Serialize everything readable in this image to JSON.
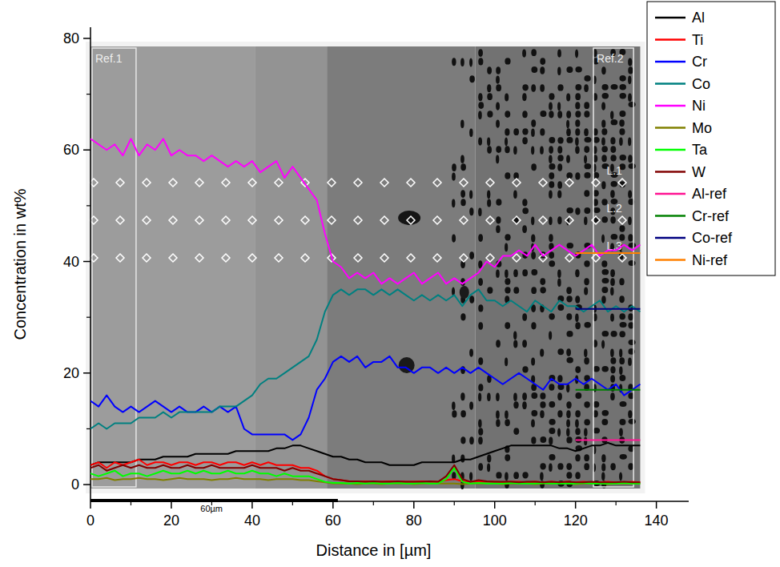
{
  "chart_data": {
    "type": "line",
    "x_label": "Distance in [µm]",
    "y_label": "Concentration in wt%",
    "xlim": [
      0,
      148
    ],
    "ylim": [
      -3,
      82
    ],
    "xticks": [
      0,
      20,
      40,
      60,
      80,
      100,
      120,
      140
    ],
    "yticks": [
      0,
      20,
      40,
      60,
      80
    ],
    "grid": false,
    "legend": "right",
    "annotations": [
      "Ref.1",
      "Ref.2",
      "L.1",
      "L.2",
      "L.3",
      "60µm"
    ],
    "x": [
      0,
      2,
      4,
      6,
      8,
      10,
      12,
      14,
      16,
      18,
      20,
      22,
      24,
      26,
      28,
      30,
      32,
      34,
      36,
      38,
      40,
      42,
      44,
      46,
      48,
      50,
      52,
      54,
      56,
      58,
      60,
      62,
      64,
      66,
      68,
      70,
      72,
      74,
      76,
      78,
      80,
      82,
      84,
      86,
      88,
      90,
      92,
      94,
      96,
      98,
      100,
      102,
      104,
      106,
      108,
      110,
      112,
      114,
      116,
      118,
      120,
      122,
      124,
      126,
      128,
      130,
      132,
      134,
      136
    ],
    "series": [
      {
        "name": "Al",
        "color": "#000000",
        "values": [
          3.5,
          4,
          4,
          4,
          4,
          4,
          4.5,
          4.5,
          4.5,
          5,
          5,
          5,
          5,
          5.5,
          5.5,
          5.5,
          5.5,
          5.5,
          6,
          6,
          6,
          6,
          6,
          6.5,
          6.5,
          7,
          7,
          6.5,
          6,
          5.5,
          5,
          5,
          4.5,
          4.5,
          4,
          4,
          4,
          3.5,
          3.5,
          3.5,
          3.5,
          4,
          4,
          4,
          4,
          4,
          4.5,
          4.5,
          5,
          5.5,
          6,
          6.5,
          7,
          7,
          7,
          7,
          7,
          7,
          6.5,
          6.5,
          6,
          6.5,
          7,
          7,
          7.5,
          7,
          7,
          7,
          7
        ]
      },
      {
        "name": "Ti",
        "color": "#ff0000",
        "values": [
          3.5,
          4,
          3,
          4,
          3.5,
          4,
          4.5,
          3.5,
          4,
          4,
          3.5,
          4,
          4,
          3.5,
          4,
          4,
          3.5,
          4,
          4,
          3.5,
          4,
          3.5,
          4,
          3.5,
          3.5,
          3.5,
          3,
          3,
          2.5,
          1.5,
          1,
          0.8,
          0.6,
          0.5,
          0.6,
          0.5,
          0.5,
          0.6,
          0.5,
          0.5,
          0.5,
          0.6,
          0.5,
          0.5,
          0.8,
          1,
          0.6,
          0.5,
          0.5,
          0.5,
          0.5,
          0.4,
          0.5,
          0.5,
          0.4,
          0.5,
          0.4,
          0.5,
          0.4,
          0.5,
          0.4,
          0.5,
          0.4,
          0.4,
          0.5,
          0.4,
          0.4,
          0.5,
          0.4
        ]
      },
      {
        "name": "Cr",
        "color": "#0000ff",
        "values": [
          15,
          14,
          16,
          14,
          13,
          14,
          13,
          14,
          15,
          14,
          13,
          14,
          13,
          13,
          14,
          13,
          14,
          13,
          14,
          10,
          9,
          9,
          9,
          9,
          9,
          8,
          9,
          12,
          17,
          19,
          22,
          23,
          22,
          23,
          21,
          22,
          22,
          23,
          21,
          21,
          20,
          21,
          21,
          20,
          21,
          20,
          21,
          20,
          21,
          20,
          19,
          18,
          19,
          20,
          19,
          18,
          17,
          19,
          18,
          18,
          19,
          18,
          19,
          18,
          17,
          18,
          16,
          17,
          18
        ]
      },
      {
        "name": "Co",
        "color": "#008080",
        "values": [
          10,
          11,
          10,
          11,
          11,
          11,
          12,
          12,
          12,
          13,
          12,
          13,
          13,
          13,
          13,
          13,
          14,
          14,
          14,
          15,
          16,
          18,
          19,
          19,
          20,
          21,
          22,
          23,
          26,
          31,
          34,
          35,
          34,
          35,
          35,
          34,
          35,
          34,
          35,
          34,
          33,
          34,
          33,
          34,
          33,
          34,
          32,
          34,
          35,
          33,
          33,
          32,
          33,
          32,
          31,
          33,
          32,
          31,
          33,
          32,
          32,
          31,
          32,
          33,
          31,
          32,
          31,
          32,
          31
        ]
      },
      {
        "name": "Ni",
        "color": "#ff00ff",
        "values": [
          62,
          61,
          60,
          61,
          59,
          62,
          59,
          61,
          60,
          62,
          59,
          60,
          59,
          59,
          58,
          59,
          58,
          57,
          58,
          57,
          58,
          56,
          57,
          58,
          55,
          57,
          55,
          53,
          51,
          45,
          40,
          39,
          37,
          38,
          37,
          38,
          36,
          37,
          36,
          37,
          38,
          36,
          37,
          38,
          36,
          37,
          36,
          37,
          38,
          40,
          39,
          41,
          41,
          42,
          41,
          43,
          41,
          42,
          43,
          42,
          41,
          42,
          43,
          41,
          42,
          42,
          43,
          42,
          43
        ]
      },
      {
        "name": "Mo",
        "color": "#808000",
        "values": [
          1,
          1,
          1.2,
          0.8,
          1,
          1,
          1.2,
          1,
          1,
          0.8,
          1,
          1.2,
          1,
          1,
          1,
          0.8,
          1,
          1,
          1.2,
          1,
          1,
          1,
          0.8,
          1,
          1,
          1,
          0.8,
          0.8,
          0.6,
          0.4,
          0.2,
          0.2,
          0.2,
          0.1,
          0.2,
          0.2,
          0.1,
          0.2,
          0.2,
          0.2,
          0.1,
          0.2,
          0.2,
          0.2,
          0.2,
          0.2,
          0.1,
          0.2,
          0.2,
          0.2,
          0.2,
          0.1,
          0.2,
          0.2,
          0.2,
          0.1,
          0.2,
          0.2,
          0.2,
          0.2,
          0.1,
          0.2,
          0.2,
          0.2,
          0.1,
          0.2,
          0.2,
          0.2,
          0.2
        ]
      },
      {
        "name": "Ta",
        "color": "#00ff00",
        "values": [
          2,
          1.5,
          2,
          2.5,
          1.5,
          2,
          2,
          1.5,
          2,
          2.5,
          2,
          2,
          2.5,
          2,
          2.5,
          2,
          2,
          2.5,
          2,
          2,
          2.5,
          2,
          2,
          1.5,
          2,
          1.5,
          1.5,
          1.5,
          1,
          0.5,
          0.3,
          0.3,
          0.2,
          0.3,
          0.2,
          0.3,
          0.2,
          0.2,
          0.3,
          0.2,
          0.2,
          0.3,
          0.2,
          0.2,
          1,
          3,
          0.5,
          0.2,
          0.3,
          0.2,
          0.2,
          0.2,
          0.3,
          0.2,
          0.2,
          0.2,
          0.3,
          0.2,
          0.2,
          0.2,
          0.2,
          0.3,
          0.2,
          0.2,
          0.2,
          0.2,
          0.3,
          0.2,
          0.2
        ]
      },
      {
        "name": "W",
        "color": "#800000",
        "values": [
          3,
          3.5,
          2.5,
          3,
          3.5,
          3,
          3.5,
          3,
          3,
          3.5,
          3,
          3,
          3.5,
          3,
          3,
          3.5,
          3,
          3,
          3,
          3,
          3.5,
          3,
          3,
          3,
          2.5,
          3,
          2.5,
          2.5,
          2,
          1.5,
          1,
          0.8,
          0.6,
          0.6,
          0.5,
          0.6,
          0.5,
          0.5,
          0.6,
          0.5,
          0.5,
          0.5,
          0.6,
          0.5,
          1.5,
          3.5,
          1,
          0.5,
          0.8,
          0.6,
          0.5,
          0.5,
          0.5,
          0.4,
          0.5,
          0.5,
          0.4,
          0.5,
          0.4,
          0.5,
          0.4,
          0.4,
          0.5,
          0.4,
          0.4,
          0.4,
          0.5,
          0.4,
          0.4
        ]
      },
      {
        "name": "Al-ref",
        "color": "#ff1493",
        "values": [
          null,
          null,
          null,
          null,
          null,
          null,
          null,
          null,
          null,
          null,
          null,
          null,
          null,
          null,
          null,
          null,
          null,
          null,
          null,
          null,
          null,
          null,
          null,
          null,
          null,
          null,
          null,
          null,
          null,
          null,
          null,
          null,
          null,
          null,
          null,
          null,
          null,
          null,
          null,
          null,
          null,
          null,
          null,
          null,
          null,
          null,
          null,
          null,
          null,
          null,
          null,
          null,
          null,
          null,
          null,
          null,
          null,
          null,
          null,
          null,
          8,
          8,
          8,
          8,
          8,
          8,
          8,
          8,
          8
        ]
      },
      {
        "name": "Cr-ref",
        "color": "#008000",
        "values": [
          null,
          null,
          null,
          null,
          null,
          null,
          null,
          null,
          null,
          null,
          null,
          null,
          null,
          null,
          null,
          null,
          null,
          null,
          null,
          null,
          null,
          null,
          null,
          null,
          null,
          null,
          null,
          null,
          null,
          null,
          null,
          null,
          null,
          null,
          null,
          null,
          null,
          null,
          null,
          null,
          null,
          null,
          null,
          null,
          null,
          null,
          null,
          null,
          null,
          null,
          null,
          null,
          null,
          null,
          null,
          null,
          null,
          null,
          null,
          null,
          17,
          17,
          17,
          17,
          17,
          17,
          17,
          17,
          17
        ]
      },
      {
        "name": "Co-ref",
        "color": "#000080",
        "values": [
          null,
          null,
          null,
          null,
          null,
          null,
          null,
          null,
          null,
          null,
          null,
          null,
          null,
          null,
          null,
          null,
          null,
          null,
          null,
          null,
          null,
          null,
          null,
          null,
          null,
          null,
          null,
          null,
          null,
          null,
          null,
          null,
          null,
          null,
          null,
          null,
          null,
          null,
          null,
          null,
          null,
          null,
          null,
          null,
          null,
          null,
          null,
          null,
          null,
          null,
          null,
          null,
          null,
          null,
          null,
          null,
          null,
          null,
          null,
          null,
          31.5,
          31.5,
          31.5,
          31.5,
          31.5,
          31.5,
          31.5,
          31.5,
          31.5
        ]
      },
      {
        "name": "Ni-ref",
        "color": "#ff8000",
        "values": [
          null,
          null,
          null,
          null,
          null,
          null,
          null,
          null,
          null,
          null,
          null,
          null,
          null,
          null,
          null,
          null,
          null,
          null,
          null,
          null,
          null,
          null,
          null,
          null,
          null,
          null,
          null,
          null,
          null,
          null,
          null,
          null,
          null,
          null,
          null,
          null,
          null,
          null,
          null,
          null,
          null,
          null,
          null,
          null,
          null,
          null,
          null,
          null,
          null,
          null,
          null,
          null,
          null,
          null,
          null,
          null,
          null,
          null,
          null,
          null,
          41.5,
          41.5,
          41.5,
          41.5,
          41.5,
          41.5,
          41.5,
          41.5,
          41.5
        ]
      }
    ]
  }
}
